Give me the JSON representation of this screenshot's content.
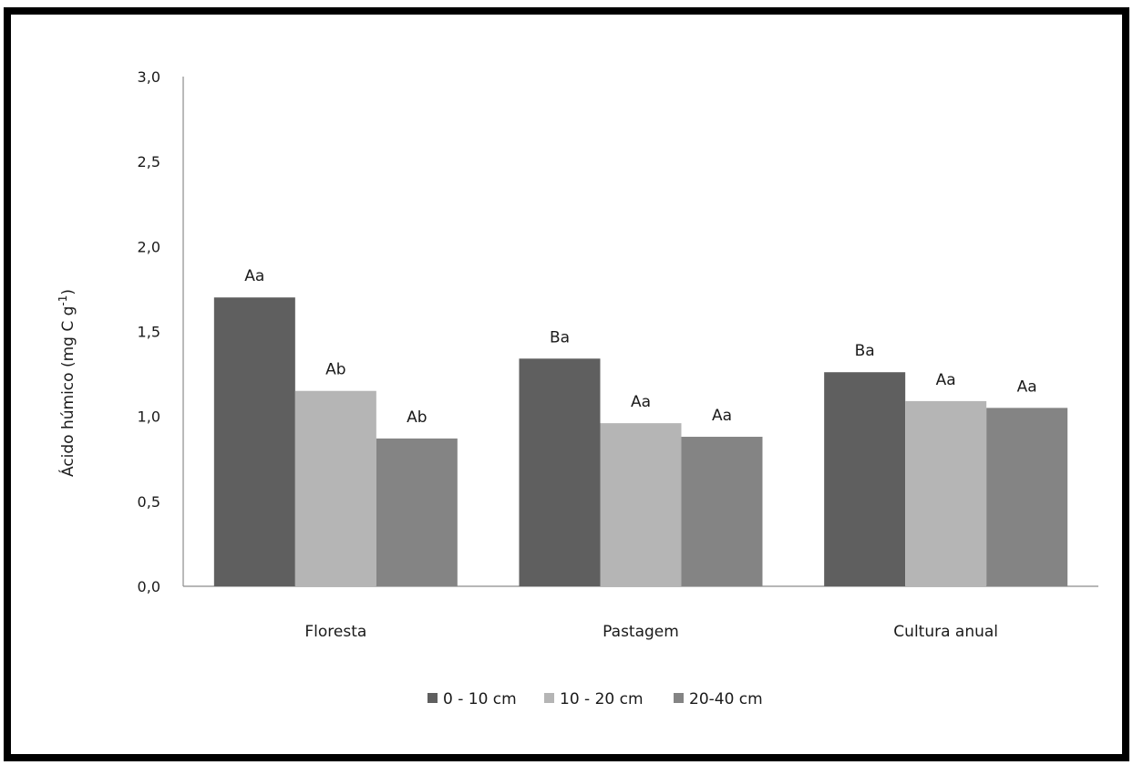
{
  "chart_data": {
    "type": "bar",
    "title": "",
    "xlabel": "",
    "ylabel": "Ácido húmico (mg C g",
    "ylabel_sup": "-1",
    "ylabel_end": ")",
    "ylim": [
      0,
      3.0
    ],
    "yticks": [
      "0,0",
      "0,5",
      "1,0",
      "1,5",
      "2,0",
      "2,5",
      "3,0"
    ],
    "ytick_values": [
      0,
      0.5,
      1.0,
      1.5,
      2.0,
      2.5,
      3.0
    ],
    "categories": [
      "Floresta",
      "Pastagem",
      "Cultura anual"
    ],
    "series": [
      {
        "name": "0 - 10 cm",
        "color": "#5f5f5f",
        "values": [
          1.7,
          1.34,
          1.26
        ],
        "labels": [
          "Aa",
          "Ba",
          "Ba"
        ]
      },
      {
        "name": "10 - 20 cm",
        "color": "#b5b5b5",
        "values": [
          1.15,
          0.96,
          1.09
        ],
        "labels": [
          "Ab",
          "Aa",
          "Aa"
        ]
      },
      {
        "name": "20-40 cm",
        "color": "#848484",
        "values": [
          0.87,
          0.88,
          1.05
        ],
        "labels": [
          "Ab",
          "Aa",
          "Aa"
        ]
      }
    ],
    "grid": false,
    "legend_position": "bottom"
  }
}
